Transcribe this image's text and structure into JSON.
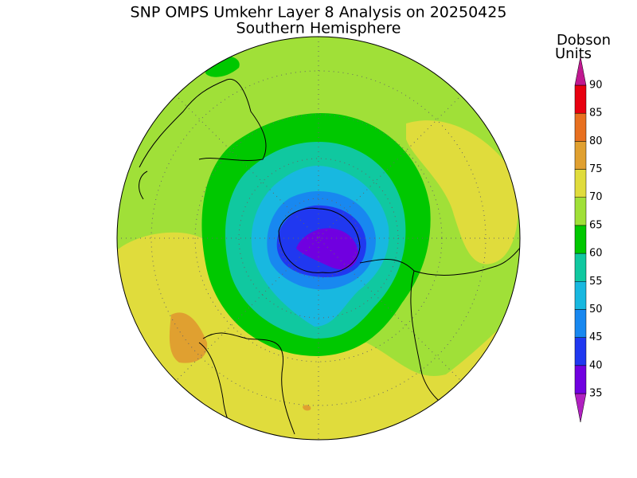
{
  "title": "SNP OMPS Umkehr Layer 8 Analysis on 20250425",
  "subtitle": "Southern Hemisphere",
  "colorbar": {
    "unit_line1": "Dobson",
    "unit_line2": "Units",
    "ticks": [
      35,
      40,
      45,
      50,
      55,
      60,
      65,
      70,
      75,
      80,
      85,
      90
    ],
    "colors": [
      "#b020c0",
      "#7000e0",
      "#2038f0",
      "#1888f0",
      "#18b8e0",
      "#10c8a0",
      "#00c800",
      "#a0e038",
      "#e0dc3c",
      "#e0a030",
      "#e87020",
      "#e80010",
      "#c01890"
    ]
  }
}
